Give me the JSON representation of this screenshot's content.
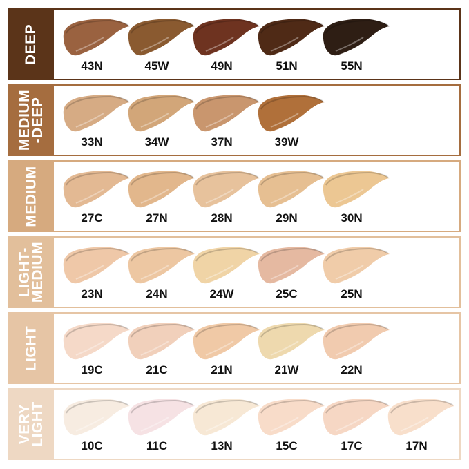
{
  "groups": [
    {
      "name": "DEEP",
      "color": "#5b3419",
      "shades": [
        {
          "code": "43N",
          "color": "#9a6240"
        },
        {
          "code": "45W",
          "color": "#8a5a30"
        },
        {
          "code": "49N",
          "color": "#6e3320"
        },
        {
          "code": "51N",
          "color": "#4f2a16"
        },
        {
          "code": "55N",
          "color": "#2e1e14"
        }
      ]
    },
    {
      "name": "MEDIUM\n-DEEP",
      "color": "#a56d3f",
      "shades": [
        {
          "code": "33N",
          "color": "#d6ab84"
        },
        {
          "code": "34W",
          "color": "#d2a679"
        },
        {
          "code": "37N",
          "color": "#c9966e"
        },
        {
          "code": "39W",
          "color": "#b0703a"
        }
      ]
    },
    {
      "name": "MEDIUM",
      "color": "#d6aa7f",
      "shades": [
        {
          "code": "27C",
          "color": "#e3b993"
        },
        {
          "code": "27N",
          "color": "#e2b78c"
        },
        {
          "code": "28N",
          "color": "#e7c29c"
        },
        {
          "code": "29N",
          "color": "#e6bf92"
        },
        {
          "code": "30N",
          "color": "#ecc793"
        }
      ]
    },
    {
      "name": "LIGHT-\nMEDIUM",
      "color": "#e2bf9b",
      "shades": [
        {
          "code": "23N",
          "color": "#efc8a8"
        },
        {
          "code": "24N",
          "color": "#edc7a2"
        },
        {
          "code": "24W",
          "color": "#f0d4a6"
        },
        {
          "code": "25C",
          "color": "#e5b9a1"
        },
        {
          "code": "25N",
          "color": "#f0cca9"
        }
      ]
    },
    {
      "name": "LIGHT",
      "color": "#e6c5a5",
      "shades": [
        {
          "code": "19C",
          "color": "#f5d9c8"
        },
        {
          "code": "21C",
          "color": "#f1d0bb"
        },
        {
          "code": "21N",
          "color": "#f0c9a6"
        },
        {
          "code": "21W",
          "color": "#eed9ae"
        },
        {
          "code": "22N",
          "color": "#f1cbaf"
        }
      ]
    },
    {
      "name": "VERY\nLIGHT",
      "color": "#eed8c3",
      "shades": [
        {
          "code": "10C",
          "color": "#f7ece1"
        },
        {
          "code": "11C",
          "color": "#f6e2e4"
        },
        {
          "code": "13N",
          "color": "#f7e8d5"
        },
        {
          "code": "15C",
          "color": "#f8dcc9"
        },
        {
          "code": "17C",
          "color": "#f6d7c4"
        },
        {
          "code": "17N",
          "color": "#f8dfcb"
        }
      ]
    }
  ]
}
